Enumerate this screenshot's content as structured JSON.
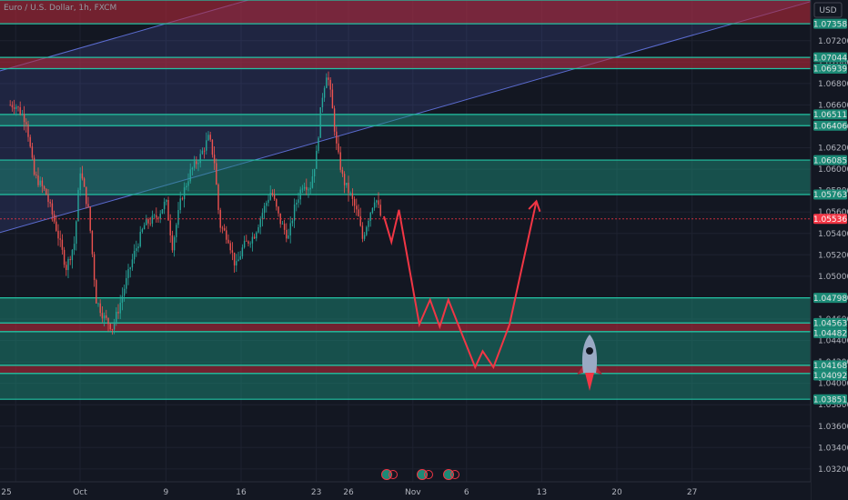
{
  "title": "Euro / U.S. Dollar, 1h, FXCM",
  "currency": "USD",
  "colors": {
    "background": "#131722",
    "candle_up": "#26a69a",
    "candle_down": "#ef5350",
    "zone_green": "#1b8a76",
    "zone_red": "#b22838",
    "zone_line": "#22c3a3",
    "channel": "#5b6cd0",
    "projection": "#f23645"
  },
  "chart_data": {
    "type": "candlestick",
    "symbol": "EURUSD",
    "timeframe": "1h",
    "ylim": [
      1.0308,
      1.0758
    ],
    "y_ticks": [
      1.032,
      1.034,
      1.036,
      1.038,
      1.04,
      1.042,
      1.044,
      1.046,
      1.048,
      1.05,
      1.052,
      1.054,
      1.056,
      1.058,
      1.06,
      1.062,
      1.064,
      1.066,
      1.068,
      1.07,
      1.072
    ],
    "x_ticks": [
      {
        "label": "25",
        "day": -6
      },
      {
        "label": "Oct",
        "day": 0
      },
      {
        "label": "9",
        "day": 8
      },
      {
        "label": "16",
        "day": 15
      },
      {
        "label": "23",
        "day": 22
      },
      {
        "label": "26",
        "day": 25
      },
      {
        "label": "Nov",
        "day": 31
      },
      {
        "label": "6",
        "day": 36
      },
      {
        "label": "13",
        "day": 43
      },
      {
        "label": "20",
        "day": 50
      },
      {
        "label": "27",
        "day": 57
      }
    ],
    "last_price": 1.05536,
    "price_levels": [
      {
        "label": "1.07358",
        "value": 1.07358,
        "kind": "zone"
      },
      {
        "label": "1.07044",
        "value": 1.07044,
        "kind": "zone"
      },
      {
        "label": "1.06939",
        "value": 1.06939,
        "kind": "zone"
      },
      {
        "label": "1.06511",
        "value": 1.06511,
        "kind": "zone"
      },
      {
        "label": "1.06406",
        "value": 1.06406,
        "kind": "zone"
      },
      {
        "label": "1.06085",
        "value": 1.06085,
        "kind": "zone"
      },
      {
        "label": "1.05763",
        "value": 1.05763,
        "kind": "zone"
      },
      {
        "label": "1.05536",
        "value": 1.05536,
        "kind": "price"
      },
      {
        "label": "1.04798",
        "value": 1.04798,
        "kind": "zone"
      },
      {
        "label": "1.04563",
        "value": 1.04563,
        "kind": "zone"
      },
      {
        "label": "1.04482",
        "value": 1.04482,
        "kind": "zone"
      },
      {
        "label": "1.04168",
        "value": 1.04168,
        "kind": "zone"
      },
      {
        "label": "1.04168",
        "value": 1.04168,
        "kind": "zone"
      },
      {
        "label": "1.04092",
        "value": 1.04092,
        "kind": "zone"
      },
      {
        "label": "1.03851",
        "value": 1.03851,
        "kind": "zone"
      }
    ],
    "zones": [
      {
        "from": 1.07358,
        "to": 1.0758,
        "color": "red"
      },
      {
        "from": 1.06939,
        "to": 1.07044,
        "color": "red"
      },
      {
        "from": 1.06406,
        "to": 1.06511,
        "color": "green"
      },
      {
        "from": 1.05763,
        "to": 1.06085,
        "color": "green"
      },
      {
        "from": 1.04563,
        "to": 1.04798,
        "color": "green"
      },
      {
        "from": 1.04482,
        "to": 1.04563,
        "color": "red"
      },
      {
        "from": 1.04168,
        "to": 1.04482,
        "color": "green"
      },
      {
        "from": 1.04092,
        "to": 1.04168,
        "color": "red"
      },
      {
        "from": 1.03851,
        "to": 1.04092,
        "color": "green"
      }
    ],
    "channel": {
      "lower_line": [
        {
          "day": -6,
          "price": 1.0545
        },
        {
          "day": 64,
          "price": 1.0745
        }
      ],
      "upper_offset": 0.0151
    },
    "price_path": [
      {
        "day": -6,
        "price": 1.066
      },
      {
        "day": -5,
        "price": 1.0645
      },
      {
        "day": -4.3,
        "price": 1.0595
      },
      {
        "day": -3.2,
        "price": 1.0578
      },
      {
        "day": -2.3,
        "price": 1.0548
      },
      {
        "day": -1.3,
        "price": 1.0508
      },
      {
        "day": -0.5,
        "price": 1.0532
      },
      {
        "day": 0,
        "price": 1.06
      },
      {
        "day": 0.8,
        "price": 1.056
      },
      {
        "day": 1.5,
        "price": 1.0478
      },
      {
        "day": 2.2,
        "price": 1.0462
      },
      {
        "day": 3.0,
        "price": 1.0452
      },
      {
        "day": 3.6,
        "price": 1.047
      },
      {
        "day": 4.2,
        "price": 1.0492
      },
      {
        "day": 5.0,
        "price": 1.052
      },
      {
        "day": 6.0,
        "price": 1.0548
      },
      {
        "day": 7.2,
        "price": 1.0556
      },
      {
        "day": 8.0,
        "price": 1.057
      },
      {
        "day": 8.6,
        "price": 1.0528
      },
      {
        "day": 9.4,
        "price": 1.0572
      },
      {
        "day": 10.3,
        "price": 1.0598
      },
      {
        "day": 11.2,
        "price": 1.0612
      },
      {
        "day": 12.0,
        "price": 1.063
      },
      {
        "day": 12.5,
        "price": 1.0608
      },
      {
        "day": 13.0,
        "price": 1.0548
      },
      {
        "day": 13.8,
        "price": 1.0536
      },
      {
        "day": 14.5,
        "price": 1.0508
      },
      {
        "day": 15.2,
        "price": 1.0528
      },
      {
        "day": 16.2,
        "price": 1.0538
      },
      {
        "day": 17.0,
        "price": 1.056
      },
      {
        "day": 17.8,
        "price": 1.058
      },
      {
        "day": 18.6,
        "price": 1.0552
      },
      {
        "day": 19.4,
        "price": 1.0536
      },
      {
        "day": 20.0,
        "price": 1.0565
      },
      {
        "day": 20.8,
        "price": 1.0588
      },
      {
        "day": 21.4,
        "price": 1.0582
      },
      {
        "day": 22.0,
        "price": 1.0612
      },
      {
        "day": 22.5,
        "price": 1.0665
      },
      {
        "day": 23.0,
        "price": 1.0692
      },
      {
        "day": 23.4,
        "price": 1.0665
      },
      {
        "day": 23.9,
        "price": 1.062
      },
      {
        "day": 24.5,
        "price": 1.059
      },
      {
        "day": 25.2,
        "price": 1.0575
      },
      {
        "day": 25.9,
        "price": 1.0556
      },
      {
        "day": 26.3,
        "price": 1.0535
      },
      {
        "day": 26.9,
        "price": 1.0556
      },
      {
        "day": 27.5,
        "price": 1.0575
      },
      {
        "day": 28.0,
        "price": 1.0556
      }
    ],
    "projection_path": [
      {
        "day": 28.3,
        "price": 1.0556
      },
      {
        "day": 29.0,
        "price": 1.0532
      },
      {
        "day": 29.7,
        "price": 1.0562
      },
      {
        "day": 31.6,
        "price": 1.0455
      },
      {
        "day": 32.6,
        "price": 1.0478
      },
      {
        "day": 33.5,
        "price": 1.0453
      },
      {
        "day": 34.3,
        "price": 1.0478
      },
      {
        "day": 36.8,
        "price": 1.0415
      },
      {
        "day": 37.5,
        "price": 1.043
      },
      {
        "day": 38.5,
        "price": 1.0415
      },
      {
        "day": 40.0,
        "price": 1.0455
      },
      {
        "day": 42.5,
        "price": 1.057
      }
    ],
    "icon_names": [
      "rocket-icon",
      "replay-toolbar-icon",
      "emoji-toolbar-icon",
      "camera-toolbar-icon"
    ]
  }
}
